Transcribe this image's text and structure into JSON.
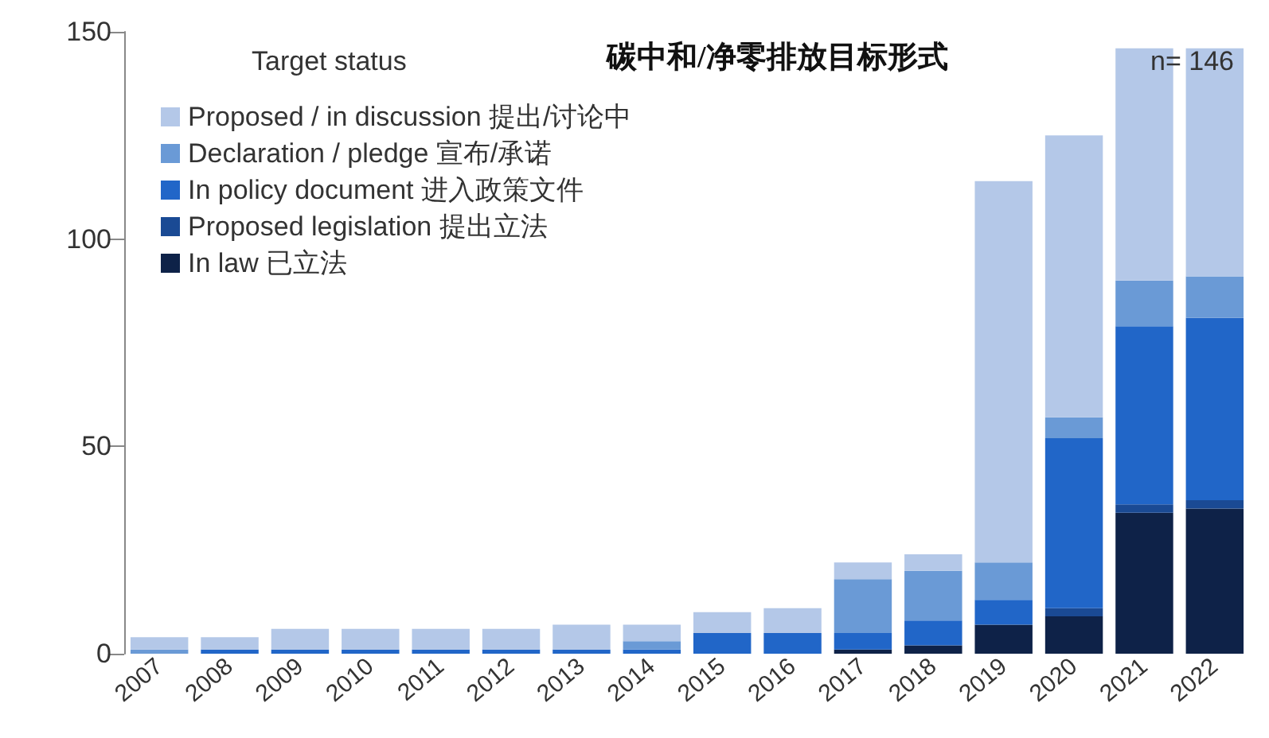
{
  "chart_data": {
    "type": "bar",
    "stacked": true,
    "title": "碳中和/净零排放目标形式",
    "legend_title": "Target status",
    "legend": "top left",
    "grid": false,
    "categories": [
      "2007",
      "2008",
      "2009",
      "2010",
      "2011",
      "2012",
      "2013",
      "2014",
      "2015",
      "2016",
      "2017",
      "2018",
      "2019",
      "2020",
      "2021",
      "2022"
    ],
    "ylim": [
      0,
      150
    ],
    "yticks": [
      0,
      50,
      100,
      150
    ],
    "annotations": [
      "n= 146"
    ],
    "series": [
      {
        "name": "In law 已立法",
        "color": "#0e2248",
        "values": [
          0,
          0,
          0,
          0,
          0,
          0,
          0,
          0,
          0,
          0,
          1,
          2,
          7,
          9,
          34,
          35
        ]
      },
      {
        "name": "Proposed legislation 提出立法",
        "color": "#1a4a94",
        "values": [
          0,
          0,
          0,
          0,
          0,
          0,
          0,
          0,
          0,
          0,
          0,
          0,
          0,
          2,
          2,
          2
        ]
      },
      {
        "name": "In policy document 进入政策文件",
        "color": "#2166c8",
        "values": [
          0,
          1,
          1,
          1,
          1,
          1,
          1,
          1,
          5,
          5,
          4,
          6,
          6,
          41,
          43,
          44
        ]
      },
      {
        "name": "Declaration / pledge 宣布/承诺",
        "color": "#6a9ad6",
        "values": [
          1,
          0,
          0,
          0,
          0,
          0,
          0,
          2,
          0,
          0,
          13,
          12,
          9,
          5,
          11,
          10
        ]
      },
      {
        "name": "Proposed / in discussion 提出/讨论中",
        "color": "#b4c8e8",
        "values": [
          3,
          3,
          5,
          5,
          5,
          5,
          6,
          4,
          5,
          6,
          4,
          4,
          92,
          68,
          56,
          55
        ]
      }
    ]
  }
}
